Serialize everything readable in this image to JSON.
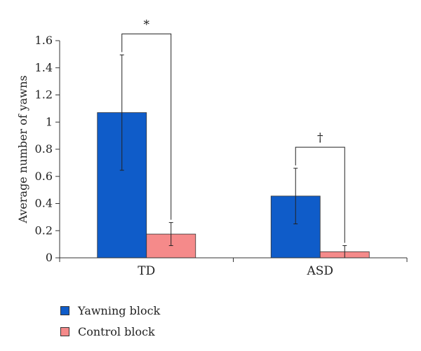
{
  "chart_data": {
    "type": "bar",
    "title": "",
    "xlabel": "",
    "ylabel": "Average number of yawns",
    "ylim": [
      0,
      1.6
    ],
    "yticks": [
      "0",
      "0.2",
      "0.4",
      "0.6",
      "0.8",
      "1",
      "1.2",
      "1.4",
      "1.6"
    ],
    "categories": [
      "TD",
      "ASD"
    ],
    "series": [
      {
        "name": "Yawning block",
        "color": "#0f5cc9",
        "values": [
          1.07,
          0.455
        ],
        "error_low": [
          0.645,
          0.25
        ],
        "error_high": [
          1.495,
          0.66
        ]
      },
      {
        "name": "Control block",
        "color": "#f58a8a",
        "values": [
          0.175,
          0.045
        ],
        "error_low": [
          0.09,
          0.0
        ],
        "error_high": [
          0.26,
          0.09
        ]
      }
    ],
    "significance": [
      {
        "category": "TD",
        "symbol": "*"
      },
      {
        "category": "ASD",
        "symbol": "†"
      }
    ],
    "legend_position": "bottom-left",
    "grid": false
  }
}
